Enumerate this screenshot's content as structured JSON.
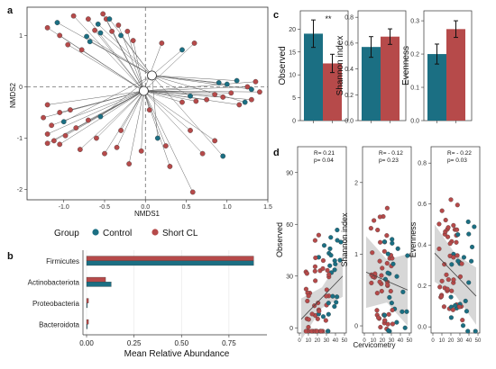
{
  "colors": {
    "control": "#1b6f83",
    "short_cl": "#b64a4a",
    "ci": "#d0d0d0"
  },
  "panels": {
    "a": "a",
    "b": "b",
    "c": "c",
    "d": "d"
  },
  "legend": {
    "title": "Group",
    "items": [
      "Control",
      "Short CL"
    ]
  },
  "chart_data": [
    {
      "id": "a",
      "type": "scatter",
      "xlabel": "NMDS1",
      "ylabel": "NMDS2",
      "xlim": [
        -1.45,
        1.5
      ],
      "ylim": [
        -2.2,
        1.55
      ],
      "xticks": [
        "-1.0",
        "-0.5",
        "0.0",
        "0.5",
        "1.0",
        "1.5"
      ],
      "xtick_values": [
        -1.0,
        -0.5,
        0.0,
        0.5,
        1.0,
        1.5
      ],
      "yticks": [
        "1",
        "0",
        "-1",
        "-2"
      ],
      "ytick_values": [
        1,
        0,
        -1,
        -2
      ],
      "centroids": {
        "Control": [
          0.08,
          0.22
        ],
        "Short CL": [
          -0.02,
          -0.08
        ]
      },
      "points": [
        {
          "g": "Short CL",
          "x": -0.88,
          "y": 1.38
        },
        {
          "g": "Short CL",
          "x": -0.7,
          "y": 1.32
        },
        {
          "g": "Short CL",
          "x": -0.52,
          "y": 1.42
        },
        {
          "g": "Short CL",
          "x": -0.48,
          "y": 1.32
        },
        {
          "g": "Control",
          "x": -0.58,
          "y": 1.22
        },
        {
          "g": "Control",
          "x": -0.55,
          "y": 1.05
        },
        {
          "g": "Short CL",
          "x": -0.41,
          "y": 1.08
        },
        {
          "g": "Control",
          "x": -0.44,
          "y": 1.32
        },
        {
          "g": "Short CL",
          "x": -0.62,
          "y": 1.1
        },
        {
          "g": "Short CL",
          "x": -0.33,
          "y": 1.2
        },
        {
          "g": "Short CL",
          "x": -0.22,
          "y": 1.08
        },
        {
          "g": "Control",
          "x": -0.3,
          "y": 1.0
        },
        {
          "g": "Short CL",
          "x": -0.15,
          "y": 0.9
        },
        {
          "g": "Control",
          "x": -0.72,
          "y": 0.98
        },
        {
          "g": "Short CL",
          "x": -0.78,
          "y": 0.72
        },
        {
          "g": "Control",
          "x": -0.68,
          "y": 0.88
        },
        {
          "g": "Short CL",
          "x": -1.2,
          "y": 1.15
        },
        {
          "g": "Short CL",
          "x": -1.05,
          "y": 1.0
        },
        {
          "g": "Short CL",
          "x": -0.95,
          "y": 0.82
        },
        {
          "g": "Control",
          "x": -1.08,
          "y": 1.25
        },
        {
          "g": "Short CL",
          "x": 0.2,
          "y": 0.85
        },
        {
          "g": "Control",
          "x": 0.45,
          "y": 0.72
        },
        {
          "g": "Short CL",
          "x": 0.6,
          "y": 0.85
        },
        {
          "g": "Control",
          "x": 1.12,
          "y": 0.12
        },
        {
          "g": "Short CL",
          "x": 1.35,
          "y": 0.1
        },
        {
          "g": "Short CL",
          "x": 1.25,
          "y": 0.0
        },
        {
          "g": "Control",
          "x": 1.3,
          "y": -0.05
        },
        {
          "g": "Short CL",
          "x": 1.05,
          "y": -0.12
        },
        {
          "g": "Control",
          "x": 1.0,
          "y": 0.05
        },
        {
          "g": "Short CL",
          "x": 0.95,
          "y": -0.2
        },
        {
          "g": "Short CL",
          "x": 0.85,
          "y": -0.15
        },
        {
          "g": "Control",
          "x": 0.9,
          "y": 0.08
        },
        {
          "g": "Short CL",
          "x": 0.75,
          "y": -0.25
        },
        {
          "g": "Short CL",
          "x": 0.62,
          "y": -0.28
        },
        {
          "g": "Control",
          "x": 0.55,
          "y": -0.18
        },
        {
          "g": "Short CL",
          "x": 0.45,
          "y": -0.3
        },
        {
          "g": "Short CL",
          "x": 1.15,
          "y": -0.35
        },
        {
          "g": "Control",
          "x": 1.22,
          "y": -0.3
        },
        {
          "g": "Short CL",
          "x": 1.3,
          "y": -0.25
        },
        {
          "g": "Short CL",
          "x": 1.4,
          "y": -0.1
        },
        {
          "g": "Short CL",
          "x": -1.2,
          "y": -0.35
        },
        {
          "g": "Short CL",
          "x": -1.05,
          "y": -0.5
        },
        {
          "g": "Short CL",
          "x": -1.25,
          "y": -0.6
        },
        {
          "g": "Short CL",
          "x": -1.15,
          "y": -0.75
        },
        {
          "g": "Short CL",
          "x": -1.2,
          "y": -0.92
        },
        {
          "g": "Short CL",
          "x": -1.12,
          "y": -1.05
        },
        {
          "g": "Short CL",
          "x": -1.05,
          "y": -1.12
        },
        {
          "g": "Short CL",
          "x": -1.2,
          "y": -1.1
        },
        {
          "g": "Short CL",
          "x": -0.98,
          "y": -0.95
        },
        {
          "g": "Control",
          "x": -1.0,
          "y": -0.68
        },
        {
          "g": "Short CL",
          "x": -0.92,
          "y": -0.45
        },
        {
          "g": "Short CL",
          "x": -0.85,
          "y": -0.8
        },
        {
          "g": "Short CL",
          "x": -0.7,
          "y": -0.65
        },
        {
          "g": "Short CL",
          "x": -0.8,
          "y": -1.22
        },
        {
          "g": "Short CL",
          "x": -0.6,
          "y": -1.0
        },
        {
          "g": "Control",
          "x": -0.55,
          "y": -0.58
        },
        {
          "g": "Short CL",
          "x": -0.5,
          "y": -1.3
        },
        {
          "g": "Short CL",
          "x": -0.35,
          "y": -1.18
        },
        {
          "g": "Short CL",
          "x": -0.3,
          "y": -0.85
        },
        {
          "g": "Short CL",
          "x": -0.2,
          "y": -1.5
        },
        {
          "g": "Short CL",
          "x": -0.05,
          "y": -1.25
        },
        {
          "g": "Control",
          "x": 0.15,
          "y": -1.0
        },
        {
          "g": "Short CL",
          "x": 0.3,
          "y": -1.55
        },
        {
          "g": "Short CL",
          "x": 0.25,
          "y": -1.15
        },
        {
          "g": "Short CL",
          "x": 0.55,
          "y": -0.85
        },
        {
          "g": "Short CL",
          "x": 0.7,
          "y": -1.3
        },
        {
          "g": "Short CL",
          "x": 0.85,
          "y": -1.05
        },
        {
          "g": "Control",
          "x": 0.95,
          "y": -1.35
        },
        {
          "g": "Short CL",
          "x": 0.58,
          "y": -2.05
        },
        {
          "g": "Short CL",
          "x": 0.05,
          "y": -0.45
        }
      ]
    },
    {
      "id": "b",
      "type": "bar",
      "orientation": "horizontal",
      "xlabel": "Mean Relative Abundance",
      "xlim": [
        0,
        0.95
      ],
      "xticks": [
        "0.00",
        "0.25",
        "0.50",
        "0.75"
      ],
      "xtick_values": [
        0,
        0.25,
        0.5,
        0.75
      ],
      "categories": [
        "Firmicutes",
        "Actinobacteriota",
        "Proteobacteria",
        "Bacteroidota"
      ],
      "series": [
        {
          "name": "Short CL",
          "values": [
            0.88,
            0.1,
            0.01,
            0.01
          ]
        },
        {
          "name": "Control",
          "values": [
            0.88,
            0.13,
            0.004,
            0.004
          ]
        }
      ]
    },
    {
      "id": "c",
      "type": "bar",
      "panels": [
        {
          "ylabel": "Observed",
          "ylim": [
            0,
            24
          ],
          "yticks": [
            "0",
            "5",
            "10",
            "15",
            "20"
          ],
          "ytick_values": [
            0,
            5,
            10,
            15,
            20
          ],
          "annotation": "**",
          "values": [
            19,
            12.5
          ],
          "errors": [
            3,
            2
          ]
        },
        {
          "ylabel": "Shannon index",
          "ylim": [
            0,
            0.85
          ],
          "yticks": [
            "0.0",
            "0.2",
            "0.4",
            "0.6",
            "0.8"
          ],
          "ytick_values": [
            0,
            0.2,
            0.4,
            0.6,
            0.8
          ],
          "values": [
            0.57,
            0.65
          ],
          "errors": [
            0.08,
            0.06
          ]
        },
        {
          "ylabel": "Evenness",
          "ylim": [
            0,
            0.33
          ],
          "yticks": [
            "0.0",
            "0.1",
            "0.2",
            "0.3"
          ],
          "ytick_values": [
            0,
            0.1,
            0.2,
            0.3
          ],
          "values": [
            0.2,
            0.275
          ],
          "errors": [
            0.03,
            0.025
          ]
        }
      ],
      "groups": [
        "Control",
        "Short CL"
      ]
    },
    {
      "id": "d",
      "type": "scatter",
      "xlabel": "Cervicometry",
      "xlim": [
        -2,
        52
      ],
      "xticks": [
        "0",
        "10",
        "20",
        "30",
        "40",
        "50"
      ],
      "xtick_values": [
        0,
        10,
        20,
        30,
        40,
        50
      ],
      "panels": [
        {
          "ylabel": "Observed",
          "ylim": [
            -3,
            105
          ],
          "yticks": [
            "0",
            "30",
            "60",
            "90"
          ],
          "ytick_values": [
            0,
            30,
            60,
            90
          ],
          "stat_r": "R= 0.21",
          "stat_p": "p= 0.04",
          "fit": [
            [
              2,
              5
            ],
            [
              48,
              30
            ]
          ],
          "band": [
            12,
            6
          ]
        },
        {
          "ylabel": "Shannon index",
          "ylim": [
            -0.1,
            2.5
          ],
          "yticks": [
            "0",
            "1",
            "2"
          ],
          "ytick_values": [
            0,
            1,
            2
          ],
          "stat_r": "R= - 0.12",
          "stat_p": "p= 0.23",
          "fit": [
            [
              2,
              0.75
            ],
            [
              48,
              0.5
            ]
          ],
          "band": [
            0.5,
            0.3
          ]
        },
        {
          "ylabel": "Evenness",
          "ylim": [
            -0.03,
            0.88
          ],
          "yticks": [
            "0.0",
            "0.2",
            "0.4",
            "0.6",
            "0.8"
          ],
          "ytick_values": [
            0,
            0.2,
            0.4,
            0.6,
            0.8
          ],
          "stat_r": "R= - 0.22",
          "stat_p": "p= 0.03",
          "fit": [
            [
              2,
              0.36
            ],
            [
              48,
              0.15
            ]
          ],
          "band": [
            0.14,
            0.1
          ]
        }
      ]
    }
  ]
}
